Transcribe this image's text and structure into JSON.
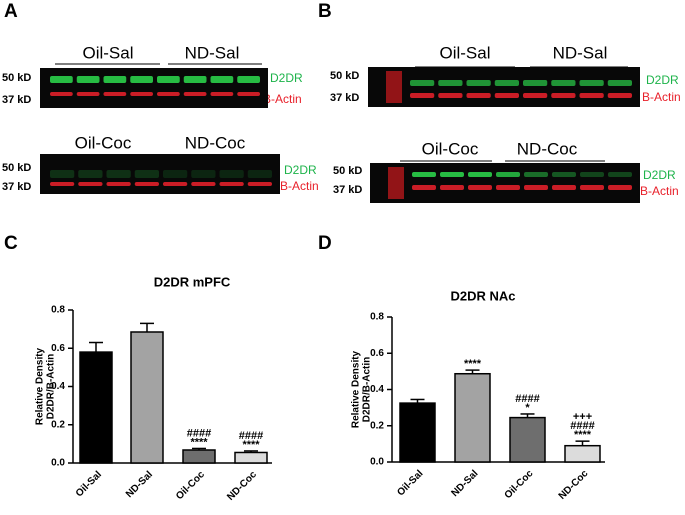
{
  "panel_labels": [
    "A",
    "B",
    "C",
    "D"
  ],
  "blots": [
    {
      "groups": [
        "Oil-Sal",
        "ND-Sal"
      ],
      "markers": [
        "50 kD",
        "37 kD"
      ],
      "bands": [
        "D2DR",
        "B-Actin"
      ]
    },
    {
      "groups": [
        "Oil-Coc",
        "ND-Coc"
      ],
      "markers": [
        "50 kD",
        "37 kD"
      ],
      "bands": [
        "D2DR",
        "B-Actin"
      ]
    },
    {
      "groups": [
        "Oil-Sal",
        "ND-Sal"
      ],
      "markers": [
        "50 kD",
        "37 kD"
      ],
      "bands": [
        "D2DR",
        "B-Actin"
      ]
    },
    {
      "groups": [
        "Oil-Coc",
        "ND-Coc"
      ],
      "markers": [
        "50 kD",
        "37 kD"
      ],
      "bands": [
        "D2DR",
        "B-Actin"
      ]
    }
  ],
  "chart_data": [
    {
      "type": "bar",
      "title": "D2DR mPFC",
      "ylabel": [
        "Relative Density",
        "D2DR/B-Actin"
      ],
      "categories": [
        "Oil-Sal",
        "ND-Sal",
        "Oil-Coc",
        "ND-Coc"
      ],
      "values": [
        0.58,
        0.685,
        0.068,
        0.055
      ],
      "errors": [
        0.05,
        0.045,
        0.008,
        0.008
      ],
      "colors": [
        "#000000",
        "#a3a3a3",
        "#6e6e6e",
        "#dcdcdc"
      ],
      "significance": [
        null,
        null,
        [
          "####",
          "****"
        ],
        [
          "####",
          "****"
        ]
      ],
      "ylim": [
        0,
        0.8
      ],
      "yticks": [
        {
          "value": 0,
          "label": "0.0"
        },
        0.2,
        0.4,
        0.6,
        0.8
      ]
    },
    {
      "type": "bar",
      "title": "D2DR NAc",
      "ylabel": [
        "Relative Density",
        "D2DR/B-Actin"
      ],
      "categories": [
        "Oil-Sal",
        "ND-Sal",
        "Oil-Coc",
        "ND-Coc"
      ],
      "values": [
        0.325,
        0.487,
        0.245,
        0.09
      ],
      "errors": [
        0.02,
        0.02,
        0.02,
        0.025
      ],
      "colors": [
        "#000000",
        "#a3a3a3",
        "#6e6e6e",
        "#dcdcdc"
      ],
      "significance": [
        null,
        [
          "****"
        ],
        [
          "####",
          "*"
        ],
        [
          "+++",
          "####",
          "****"
        ]
      ],
      "ylim": [
        0,
        0.8
      ],
      "yticks": [
        {
          "value": 0,
          "label": "0.0"
        },
        0.2,
        0.4,
        0.6,
        0.8
      ]
    }
  ]
}
